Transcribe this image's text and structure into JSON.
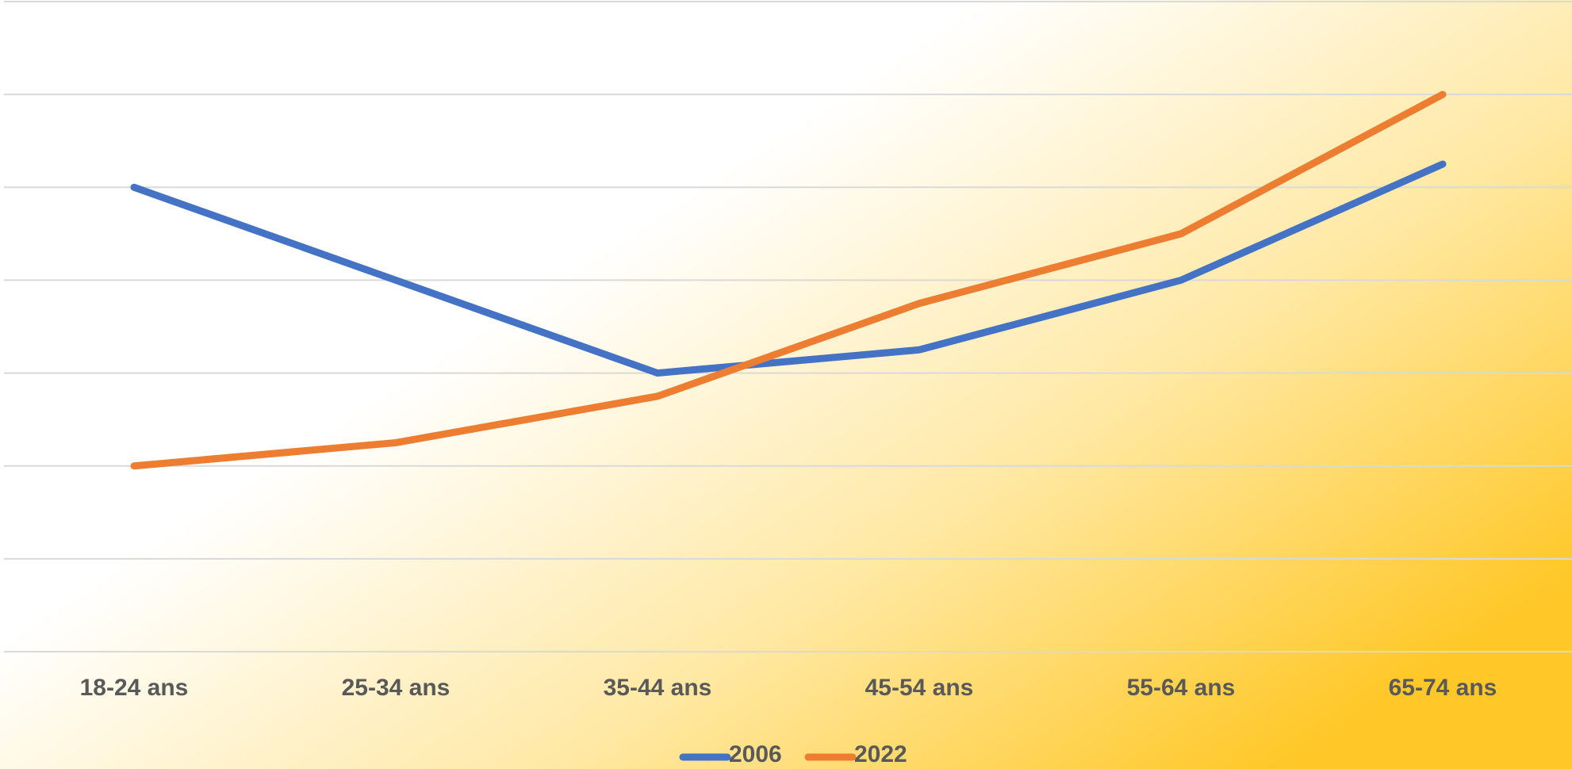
{
  "chart_data": {
    "type": "line",
    "categories": [
      "18-24 ans",
      "25-34 ans",
      "35-44 ans",
      "45-54 ans",
      "55-64 ans",
      "65-74 ans"
    ],
    "series": [
      {
        "name": "2006",
        "color": "#4472c4",
        "values": [
          5,
          4,
          3,
          3.25,
          4,
          5.25
        ]
      },
      {
        "name": "2022",
        "color": "#ed7d31",
        "values": [
          2,
          2.25,
          2.75,
          3.75,
          4.5,
          6
        ]
      }
    ],
    "ylim": [
      0,
      7
    ],
    "yticks": [
      0,
      1,
      2,
      3,
      4,
      5,
      6,
      7
    ],
    "grid": true,
    "legend": "bottom"
  }
}
